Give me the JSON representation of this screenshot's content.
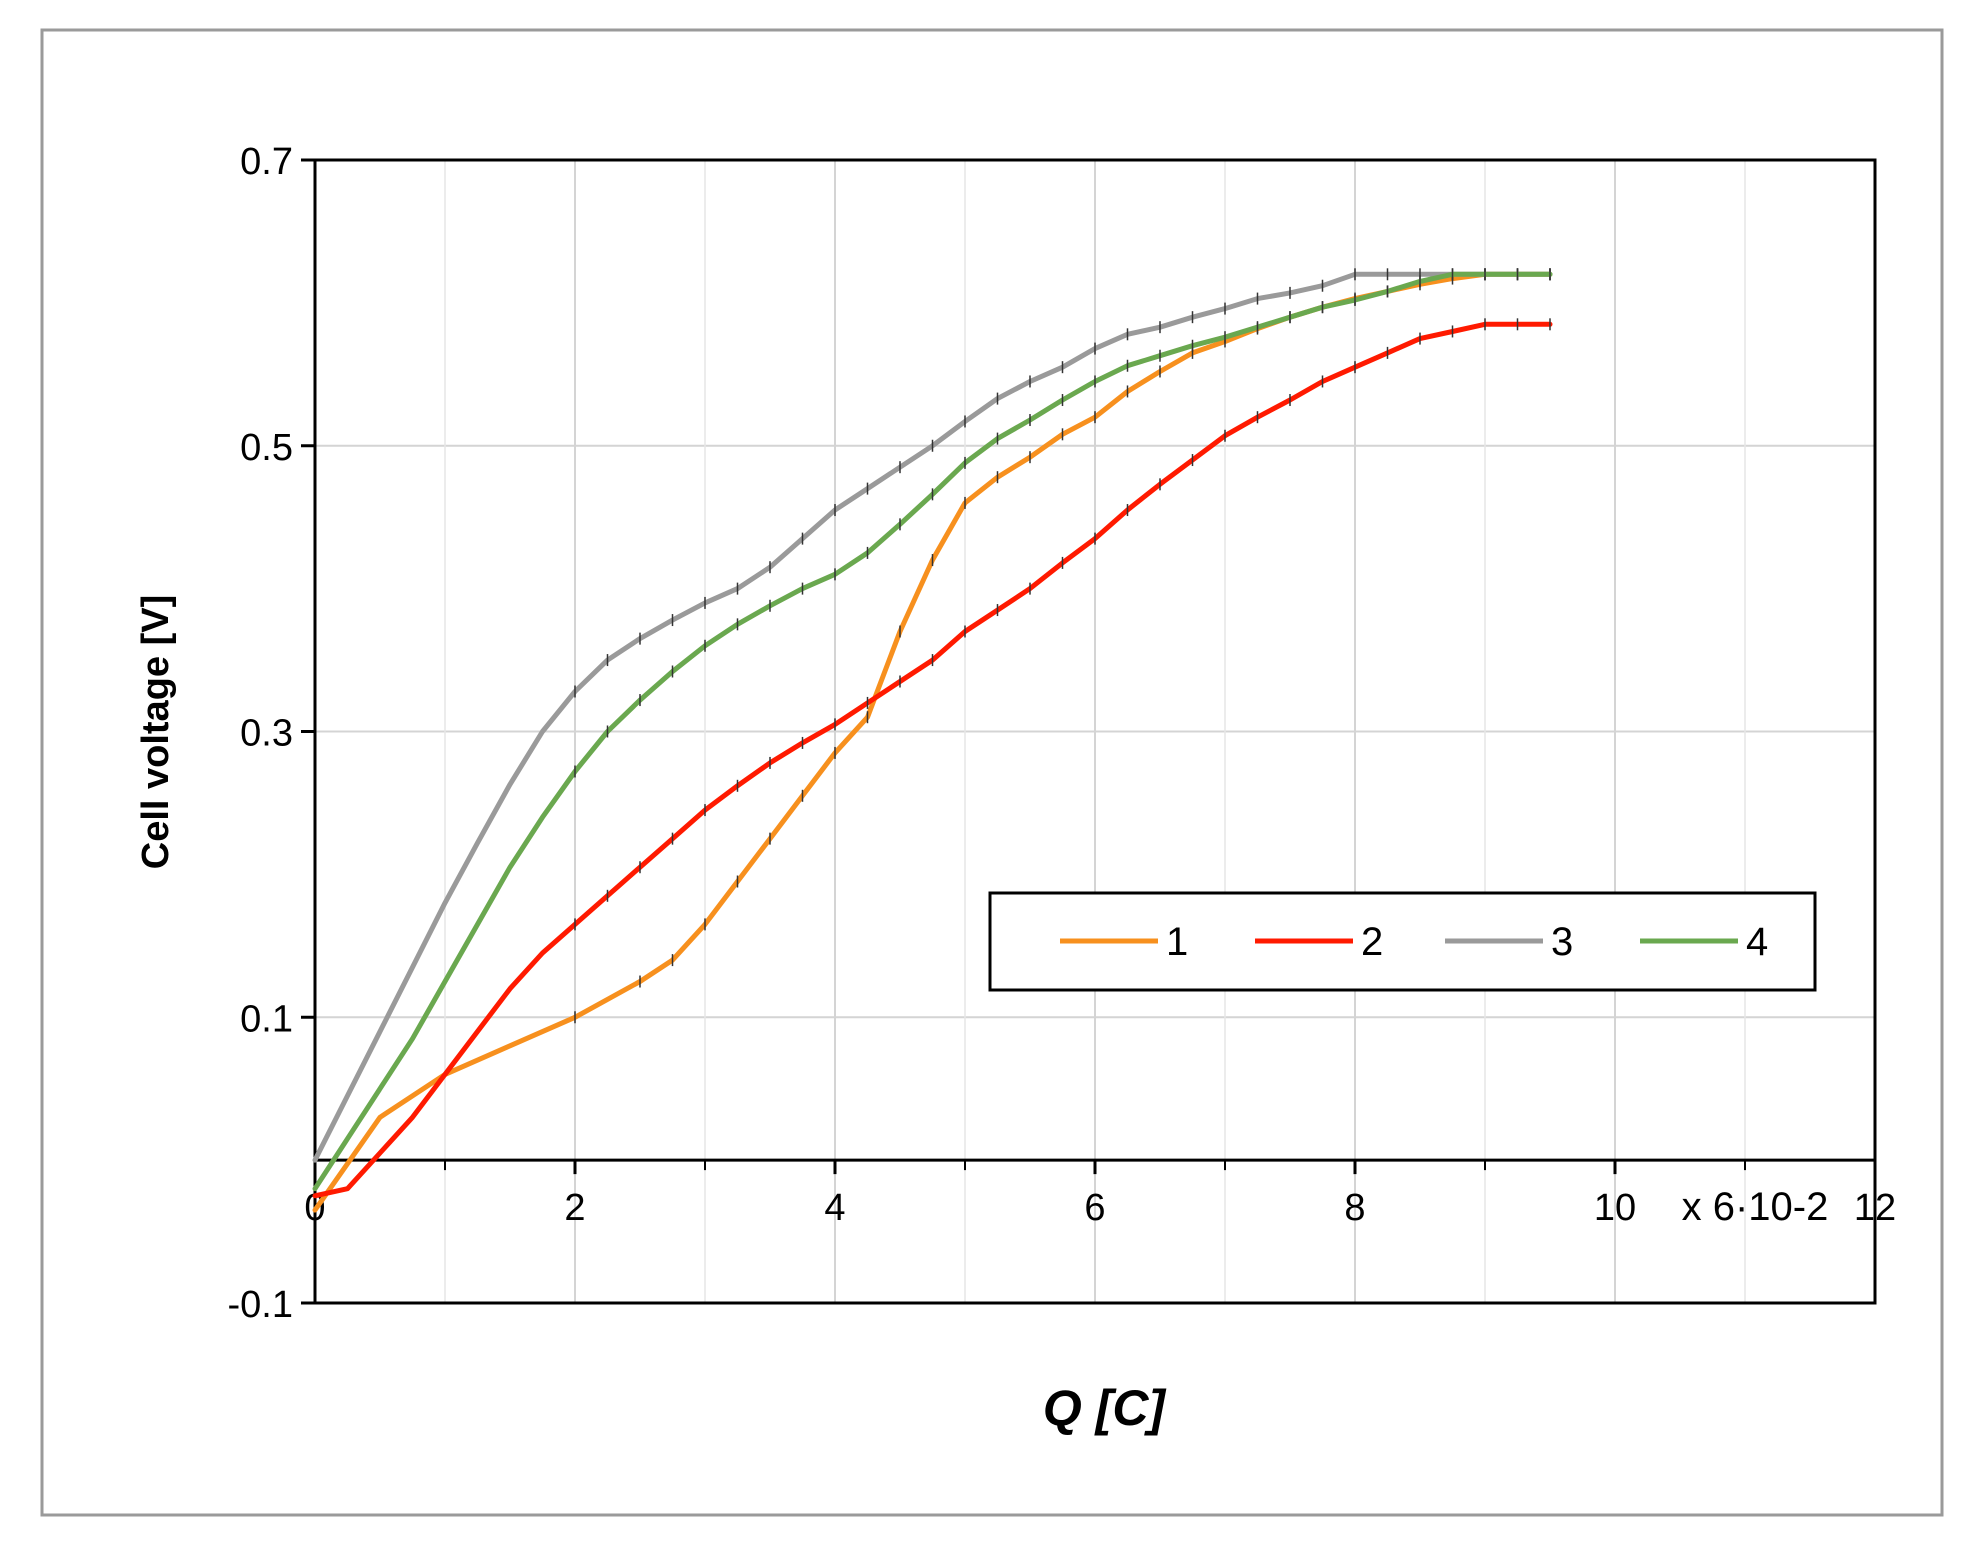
{
  "chart_data": {
    "type": "line",
    "xlabel": "Q [C]",
    "ylabel": "Cell voltage [V]",
    "x_multiplier_label": "x 6·10-2",
    "xlim": [
      0,
      12
    ],
    "ylim": [
      -0.1,
      0.7
    ],
    "x_origin_y": 0,
    "x_ticks": [
      0,
      2,
      4,
      6,
      8,
      10,
      12
    ],
    "x_tick_labels": [
      "0",
      "2",
      "4",
      "6",
      "8",
      "10",
      "12"
    ],
    "y_ticks": [
      -0.1,
      0.1,
      0.3,
      0.5,
      0.7
    ],
    "y_tick_labels": [
      "-0.1",
      "0.1",
      "0.3",
      "0.5",
      "0.7"
    ],
    "grid": true,
    "legend_position": "center-right",
    "series": [
      {
        "name": "1",
        "color": "#f7901e",
        "x": [
          0,
          0.5,
          1,
          1.5,
          2,
          2.5,
          2.75,
          3,
          3.25,
          3.5,
          3.75,
          4,
          4.25,
          4.5,
          4.75,
          5,
          5.25,
          5.5,
          5.75,
          6,
          6.25,
          6.5,
          6.75,
          7,
          7.25,
          7.5,
          7.75,
          8,
          8.25,
          8.5,
          8.75,
          9,
          9.25,
          9.5
        ],
        "y": [
          -0.035,
          0.03,
          0.06,
          0.08,
          0.1,
          0.125,
          0.14,
          0.165,
          0.195,
          0.225,
          0.255,
          0.285,
          0.31,
          0.37,
          0.42,
          0.46,
          0.478,
          0.492,
          0.508,
          0.52,
          0.538,
          0.552,
          0.565,
          0.573,
          0.582,
          0.59,
          0.597,
          0.603,
          0.608,
          0.613,
          0.617,
          0.62,
          0.62,
          0.62
        ]
      },
      {
        "name": "2",
        "color": "#ff1a00",
        "x": [
          0,
          0.25,
          0.5,
          0.75,
          1,
          1.25,
          1.5,
          1.75,
          2,
          2.25,
          2.5,
          2.75,
          3,
          3.25,
          3.5,
          3.75,
          4,
          4.25,
          4.5,
          4.75,
          5,
          5.25,
          5.5,
          5.75,
          6,
          6.25,
          6.5,
          6.75,
          7,
          7.25,
          7.5,
          7.75,
          8,
          8.25,
          8.5,
          8.75,
          9,
          9.25,
          9.5
        ],
        "y": [
          -0.025,
          -0.02,
          0.005,
          0.03,
          0.06,
          0.09,
          0.12,
          0.145,
          0.165,
          0.185,
          0.205,
          0.225,
          0.245,
          0.262,
          0.278,
          0.292,
          0.305,
          0.32,
          0.335,
          0.35,
          0.37,
          0.385,
          0.4,
          0.418,
          0.435,
          0.455,
          0.473,
          0.49,
          0.507,
          0.52,
          0.532,
          0.545,
          0.555,
          0.565,
          0.575,
          0.58,
          0.585,
          0.585,
          0.585
        ]
      },
      {
        "name": "3",
        "color": "#9a9a9a",
        "x": [
          0,
          0.25,
          0.5,
          0.75,
          1,
          1.25,
          1.5,
          1.75,
          2,
          2.25,
          2.5,
          2.75,
          3,
          3.25,
          3.5,
          3.75,
          4,
          4.25,
          4.5,
          4.75,
          5,
          5.25,
          5.5,
          5.75,
          6,
          6.25,
          6.5,
          6.75,
          7,
          7.25,
          7.5,
          7.75,
          8,
          8.25,
          8.5,
          8.75,
          9,
          9.25,
          9.5
        ],
        "y": [
          0,
          0.045,
          0.09,
          0.135,
          0.18,
          0.222,
          0.263,
          0.3,
          0.328,
          0.35,
          0.365,
          0.378,
          0.39,
          0.4,
          0.415,
          0.435,
          0.455,
          0.47,
          0.485,
          0.5,
          0.517,
          0.533,
          0.545,
          0.555,
          0.568,
          0.578,
          0.583,
          0.59,
          0.596,
          0.603,
          0.607,
          0.612,
          0.62,
          0.62,
          0.62,
          0.62,
          0.62,
          0.62,
          0.62
        ]
      },
      {
        "name": "4",
        "color": "#6aa84f",
        "x": [
          0,
          0.25,
          0.5,
          0.75,
          1,
          1.25,
          1.5,
          1.75,
          2,
          2.25,
          2.5,
          2.75,
          3,
          3.25,
          3.5,
          3.75,
          4,
          4.25,
          4.5,
          4.75,
          5,
          5.25,
          5.5,
          5.75,
          6,
          6.25,
          6.5,
          6.75,
          7,
          7.25,
          7.5,
          7.75,
          8,
          8.25,
          8.5,
          8.75,
          9,
          9.25,
          9.5
        ],
        "y": [
          -0.02,
          0.015,
          0.05,
          0.085,
          0.125,
          0.165,
          0.205,
          0.24,
          0.272,
          0.3,
          0.322,
          0.342,
          0.36,
          0.375,
          0.388,
          0.4,
          0.41,
          0.425,
          0.445,
          0.466,
          0.488,
          0.505,
          0.518,
          0.532,
          0.545,
          0.556,
          0.563,
          0.57,
          0.576,
          0.583,
          0.59,
          0.597,
          0.602,
          0.608,
          0.615,
          0.62,
          0.62,
          0.62,
          0.62
        ]
      }
    ]
  }
}
